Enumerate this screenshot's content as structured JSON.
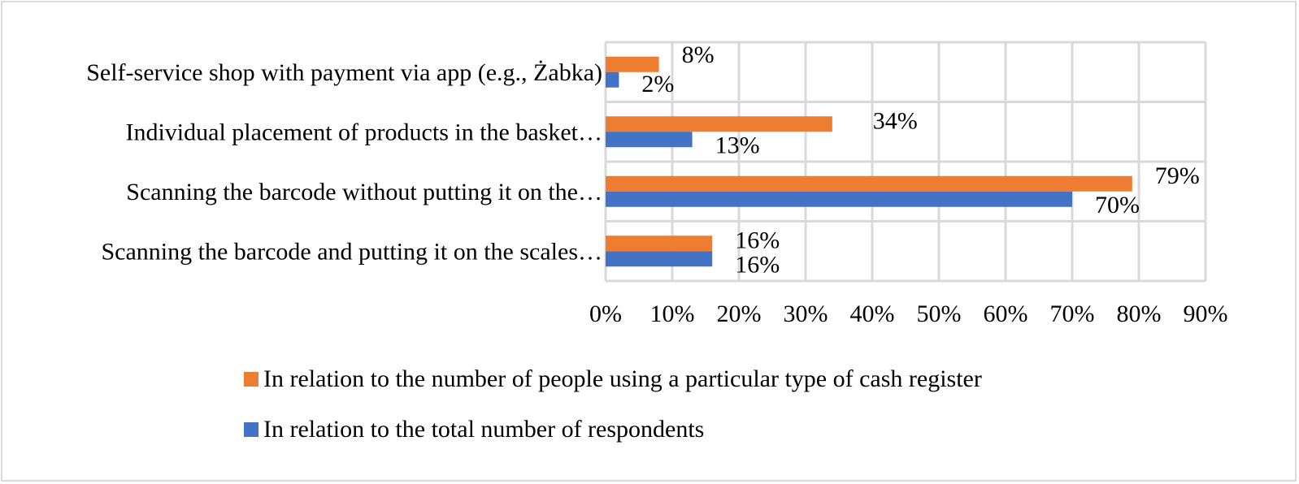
{
  "chart_data": {
    "type": "bar",
    "orientation": "horizontal",
    "categories": [
      "Self-service shop with payment via app (e.g., Żabka)",
      "Individual placement of products in the basket…",
      "Scanning the barcode without putting it on the…",
      "Scanning the barcode and putting it on the scales…"
    ],
    "series": [
      {
        "name": "In relation to the number of people using a particular type of cash register",
        "color": "#ED7D31",
        "values": [
          8,
          34,
          79,
          16
        ],
        "labels": [
          "8%",
          "34%",
          "79%",
          "16%"
        ]
      },
      {
        "name": "In relation to the total number of respondents",
        "color": "#4472C4",
        "values": [
          2,
          13,
          70,
          16
        ],
        "labels": [
          "2%",
          "13%",
          "70%",
          "16%"
        ]
      }
    ],
    "xlim": [
      0,
      90
    ],
    "xticks": [
      0,
      10,
      20,
      30,
      40,
      50,
      60,
      70,
      80,
      90
    ],
    "xtick_labels": [
      "0%",
      "10%",
      "20%",
      "30%",
      "40%",
      "50%",
      "60%",
      "70%",
      "80%",
      "90%"
    ],
    "grid": true,
    "legend_position": "bottom"
  }
}
